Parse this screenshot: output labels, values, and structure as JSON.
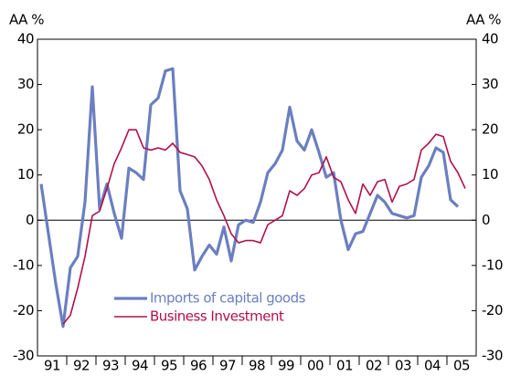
{
  "chart_data": {
    "type": "line",
    "y_label": "AA %",
    "y2_label": "AA %",
    "categories": [
      "91",
      null,
      null,
      null,
      "92",
      null,
      null,
      null,
      "93",
      null,
      null,
      null,
      "94",
      null,
      null,
      null,
      "95",
      null,
      null,
      null,
      "96",
      null,
      null,
      null,
      "97",
      null,
      null,
      null,
      "98",
      null,
      null,
      null,
      "99",
      null,
      null,
      null,
      "00",
      null,
      null,
      null,
      "01",
      null,
      null,
      null,
      "02",
      null,
      null,
      null,
      "03",
      null,
      null,
      null,
      "04",
      null,
      null,
      null,
      "05",
      null,
      null,
      null
    ],
    "series": [
      {
        "name": "Imports of capital goods",
        "color": "#6b7fc0",
        "values": [
          8,
          -3,
          -14,
          -23.5,
          -10.5,
          -8,
          4,
          29.5,
          2.5,
          8,
          1.5,
          -4,
          11.5,
          10.5,
          9,
          25.5,
          27,
          33,
          33.5,
          6.5,
          2.5,
          -11,
          -8,
          -5.5,
          -7.5,
          -1.5,
          -9,
          -1,
          0,
          -0.5,
          4,
          10.5,
          12.5,
          15.5,
          25,
          17.5,
          15.5,
          20,
          15,
          9.5,
          10.5,
          0,
          -6.5,
          -3,
          -2.5,
          1.5,
          5.5,
          4,
          1.5,
          1,
          0.5,
          1,
          9.5,
          12,
          16,
          15,
          4.5,
          3,
          null,
          null
        ]
      },
      {
        "name": "Business Investment",
        "color": "#b0104a",
        "values": [
          null,
          null,
          null,
          -23,
          -21,
          -15,
          -8,
          1,
          2,
          7,
          12.5,
          16,
          20,
          20,
          16,
          15.5,
          16,
          15.5,
          17,
          15,
          14.5,
          14,
          12,
          9,
          4.5,
          1,
          -3,
          -5,
          -4.5,
          -4.5,
          -5,
          -1,
          0,
          1,
          6.5,
          5.5,
          7,
          10,
          10.5,
          14,
          9.5,
          8.5,
          4.5,
          1.5,
          8,
          5.5,
          8.5,
          9,
          4,
          7.5,
          8,
          9,
          15.5,
          17,
          19,
          18.5,
          13,
          10.5,
          7,
          null
        ]
      }
    ],
    "ylim": [
      -30,
      40
    ],
    "yticks": [
      -30,
      -20,
      -10,
      0,
      10,
      20,
      30,
      40
    ],
    "y2lim": [
      -30,
      40
    ],
    "y2ticks": [
      -30,
      -20,
      -10,
      0,
      10,
      20,
      30,
      40
    ],
    "legend": "lower-left"
  }
}
